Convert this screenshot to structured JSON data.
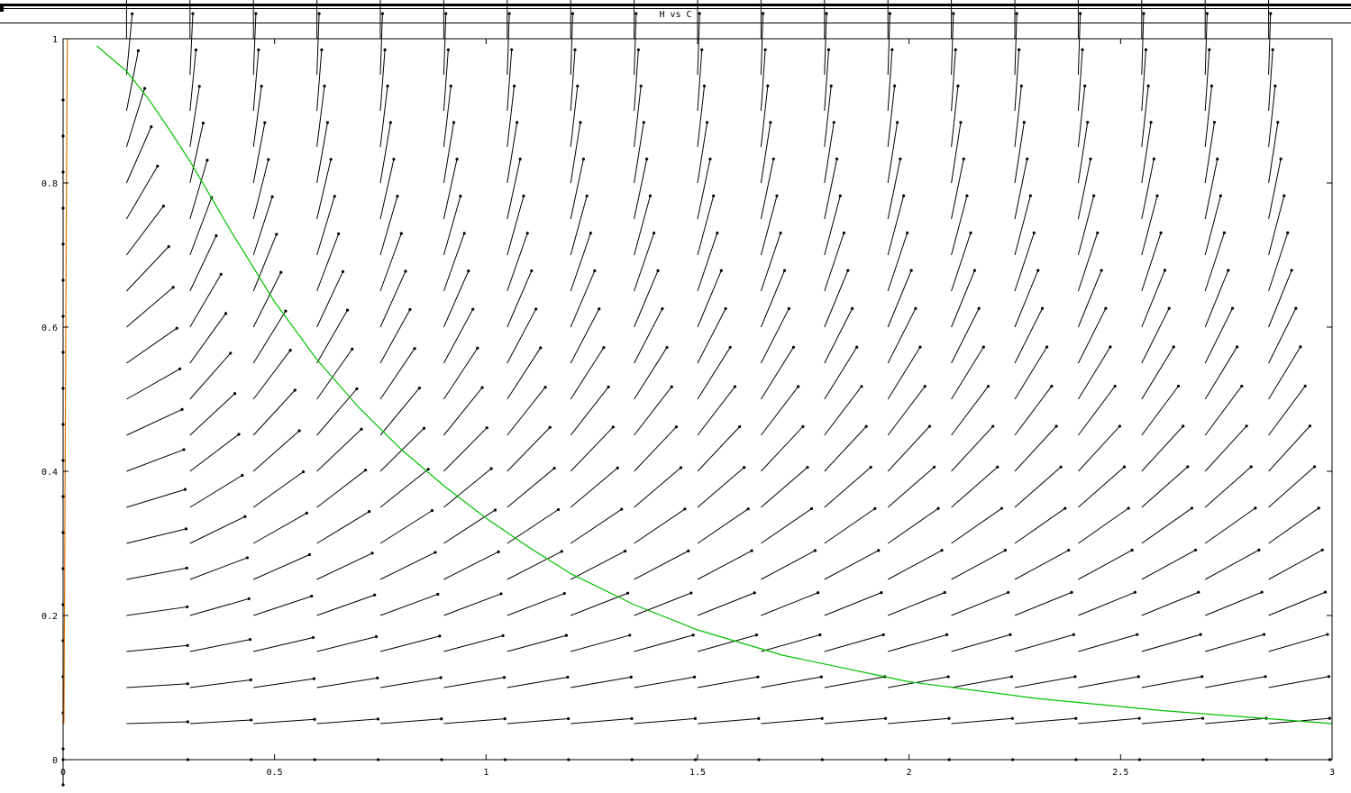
{
  "window": {
    "title": "H vs C"
  },
  "chart_data": {
    "type": "line",
    "title": "H vs C",
    "xlabel": "",
    "ylabel": "",
    "xlim": [
      0,
      3
    ],
    "ylim": [
      0,
      1
    ],
    "x_ticks": [
      "0",
      "0.5",
      "1",
      "1.5",
      "2",
      "2.5",
      "3"
    ],
    "y_ticks": [
      "0",
      "0.2",
      "0.4",
      "0.6",
      "0.8",
      "1"
    ],
    "grid": false,
    "vector_field": {
      "x_start": 0.0,
      "x_step": 0.15,
      "x_count": 20,
      "y_start": 0.0,
      "y_step": 0.05,
      "y_count": 21,
      "dx": "x - x*y",
      "dy": "x*y - 0.1*y",
      "arrow_color": "#000000"
    },
    "series": [
      {
        "color": "#00c000",
        "x": [
          0.08,
          0.15,
          0.2,
          0.25,
          0.3,
          0.4,
          0.5,
          0.6,
          0.7,
          0.8,
          0.9,
          1.0,
          1.1,
          1.2,
          1.35,
          1.5,
          1.7,
          2.0,
          2.3,
          2.6,
          3.0
        ],
        "y": [
          0.99,
          0.955,
          0.918,
          0.875,
          0.83,
          0.73,
          0.635,
          0.555,
          0.488,
          0.43,
          0.38,
          0.335,
          0.295,
          0.258,
          0.215,
          0.18,
          0.145,
          0.108,
          0.085,
          0.068,
          0.05
        ]
      },
      {
        "color": "#e07000",
        "x": [
          0.002,
          0.004,
          0.006,
          0.008,
          0.01
        ],
        "y": [
          0.05,
          0.3,
          0.55,
          0.8,
          1.0
        ]
      }
    ]
  }
}
